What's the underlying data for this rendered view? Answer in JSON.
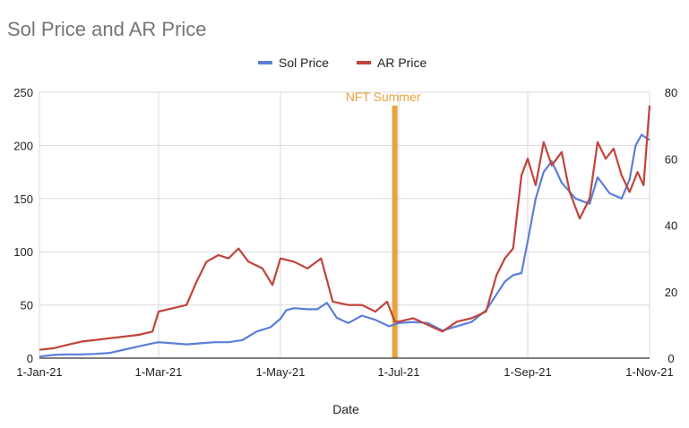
{
  "chart_data": {
    "type": "line",
    "title": "Sol Price and AR Price",
    "xlabel": "Date",
    "ylabel_left": "",
    "ylabel_right": "",
    "x_ticks": [
      "1-Jan-21",
      "1-Mar-21",
      "1-May-21",
      "1-Jul-21",
      "1-Sep-21",
      "1-Nov-21"
    ],
    "x_range": [
      "2021-01-01",
      "2021-11-01"
    ],
    "ylim_left": [
      0,
      250
    ],
    "yticks_left": [
      0,
      50,
      100,
      150,
      200,
      250
    ],
    "ylim_right": [
      0,
      80
    ],
    "yticks_right": [
      0,
      20,
      40,
      60,
      80
    ],
    "grid": "vertical-and-horizontal",
    "legend_position": "top-center",
    "annotation": {
      "label": "NFT Summer",
      "date": "2021-06-29",
      "color": "#e8a33c"
    },
    "series": [
      {
        "name": "Sol Price",
        "axis": "left",
        "color": "#5b7fd9",
        "points": [
          [
            "2021-01-01",
            1.5
          ],
          [
            "2021-01-08",
            3
          ],
          [
            "2021-01-15",
            3.5
          ],
          [
            "2021-01-22",
            3.5
          ],
          [
            "2021-01-29",
            4
          ],
          [
            "2021-02-05",
            5
          ],
          [
            "2021-02-12",
            8
          ],
          [
            "2021-02-19",
            11
          ],
          [
            "2021-02-26",
            14
          ],
          [
            "2021-03-01",
            15
          ],
          [
            "2021-03-08",
            14
          ],
          [
            "2021-03-15",
            13
          ],
          [
            "2021-03-22",
            14
          ],
          [
            "2021-03-29",
            15
          ],
          [
            "2021-04-05",
            15
          ],
          [
            "2021-04-12",
            17
          ],
          [
            "2021-04-19",
            25
          ],
          [
            "2021-04-26",
            29
          ],
          [
            "2021-05-01",
            37
          ],
          [
            "2021-05-04",
            45
          ],
          [
            "2021-05-08",
            47
          ],
          [
            "2021-05-15",
            46
          ],
          [
            "2021-05-20",
            46
          ],
          [
            "2021-05-25",
            52
          ],
          [
            "2021-05-30",
            38
          ],
          [
            "2021-06-05",
            33
          ],
          [
            "2021-06-12",
            40
          ],
          [
            "2021-06-19",
            36
          ],
          [
            "2021-06-26",
            30
          ],
          [
            "2021-07-01",
            33
          ],
          [
            "2021-07-08",
            34
          ],
          [
            "2021-07-15",
            33
          ],
          [
            "2021-07-22",
            26
          ],
          [
            "2021-07-29",
            30
          ],
          [
            "2021-08-05",
            34
          ],
          [
            "2021-08-12",
            45
          ],
          [
            "2021-08-17",
            60
          ],
          [
            "2021-08-21",
            72
          ],
          [
            "2021-08-25",
            78
          ],
          [
            "2021-08-29",
            80
          ],
          [
            "2021-09-01",
            110
          ],
          [
            "2021-09-05",
            150
          ],
          [
            "2021-09-09",
            175
          ],
          [
            "2021-09-13",
            185
          ],
          [
            "2021-09-18",
            165
          ],
          [
            "2021-09-25",
            150
          ],
          [
            "2021-10-02",
            145
          ],
          [
            "2021-10-06",
            170
          ],
          [
            "2021-10-12",
            155
          ],
          [
            "2021-10-18",
            150
          ],
          [
            "2021-10-22",
            168
          ],
          [
            "2021-10-25",
            200
          ],
          [
            "2021-10-28",
            210
          ],
          [
            "2021-11-01",
            205
          ]
        ]
      },
      {
        "name": "AR Price",
        "axis": "right",
        "color": "#c0443a",
        "points": [
          [
            "2021-01-01",
            2.5
          ],
          [
            "2021-01-08",
            3
          ],
          [
            "2021-01-15",
            4
          ],
          [
            "2021-01-22",
            5
          ],
          [
            "2021-01-29",
            5.5
          ],
          [
            "2021-02-05",
            6
          ],
          [
            "2021-02-12",
            6.5
          ],
          [
            "2021-02-19",
            7
          ],
          [
            "2021-02-26",
            8
          ],
          [
            "2021-03-01",
            14
          ],
          [
            "2021-03-08",
            15
          ],
          [
            "2021-03-15",
            16
          ],
          [
            "2021-03-20",
            23
          ],
          [
            "2021-03-25",
            29
          ],
          [
            "2021-03-31",
            31
          ],
          [
            "2021-04-05",
            30
          ],
          [
            "2021-04-10",
            33
          ],
          [
            "2021-04-15",
            29
          ],
          [
            "2021-04-22",
            27
          ],
          [
            "2021-04-27",
            22
          ],
          [
            "2021-05-01",
            30
          ],
          [
            "2021-05-08",
            29
          ],
          [
            "2021-05-15",
            27
          ],
          [
            "2021-05-22",
            30
          ],
          [
            "2021-05-28",
            17
          ],
          [
            "2021-06-05",
            16
          ],
          [
            "2021-06-12",
            16
          ],
          [
            "2021-06-19",
            14
          ],
          [
            "2021-06-25",
            17
          ],
          [
            "2021-06-29",
            11
          ],
          [
            "2021-07-01",
            11
          ],
          [
            "2021-07-08",
            12
          ],
          [
            "2021-07-15",
            10
          ],
          [
            "2021-07-22",
            8
          ],
          [
            "2021-07-29",
            11
          ],
          [
            "2021-08-05",
            12
          ],
          [
            "2021-08-12",
            14
          ],
          [
            "2021-08-17",
            25
          ],
          [
            "2021-08-21",
            30
          ],
          [
            "2021-08-25",
            33
          ],
          [
            "2021-08-29",
            55
          ],
          [
            "2021-09-01",
            60
          ],
          [
            "2021-09-05",
            52
          ],
          [
            "2021-09-09",
            65
          ],
          [
            "2021-09-13",
            58
          ],
          [
            "2021-09-18",
            62
          ],
          [
            "2021-09-22",
            50
          ],
          [
            "2021-09-27",
            42
          ],
          [
            "2021-10-02",
            48
          ],
          [
            "2021-10-06",
            65
          ],
          [
            "2021-10-10",
            60
          ],
          [
            "2021-10-14",
            63
          ],
          [
            "2021-10-18",
            55
          ],
          [
            "2021-10-22",
            50
          ],
          [
            "2021-10-26",
            56
          ],
          [
            "2021-10-29",
            52
          ],
          [
            "2021-11-01",
            76
          ]
        ]
      }
    ]
  }
}
